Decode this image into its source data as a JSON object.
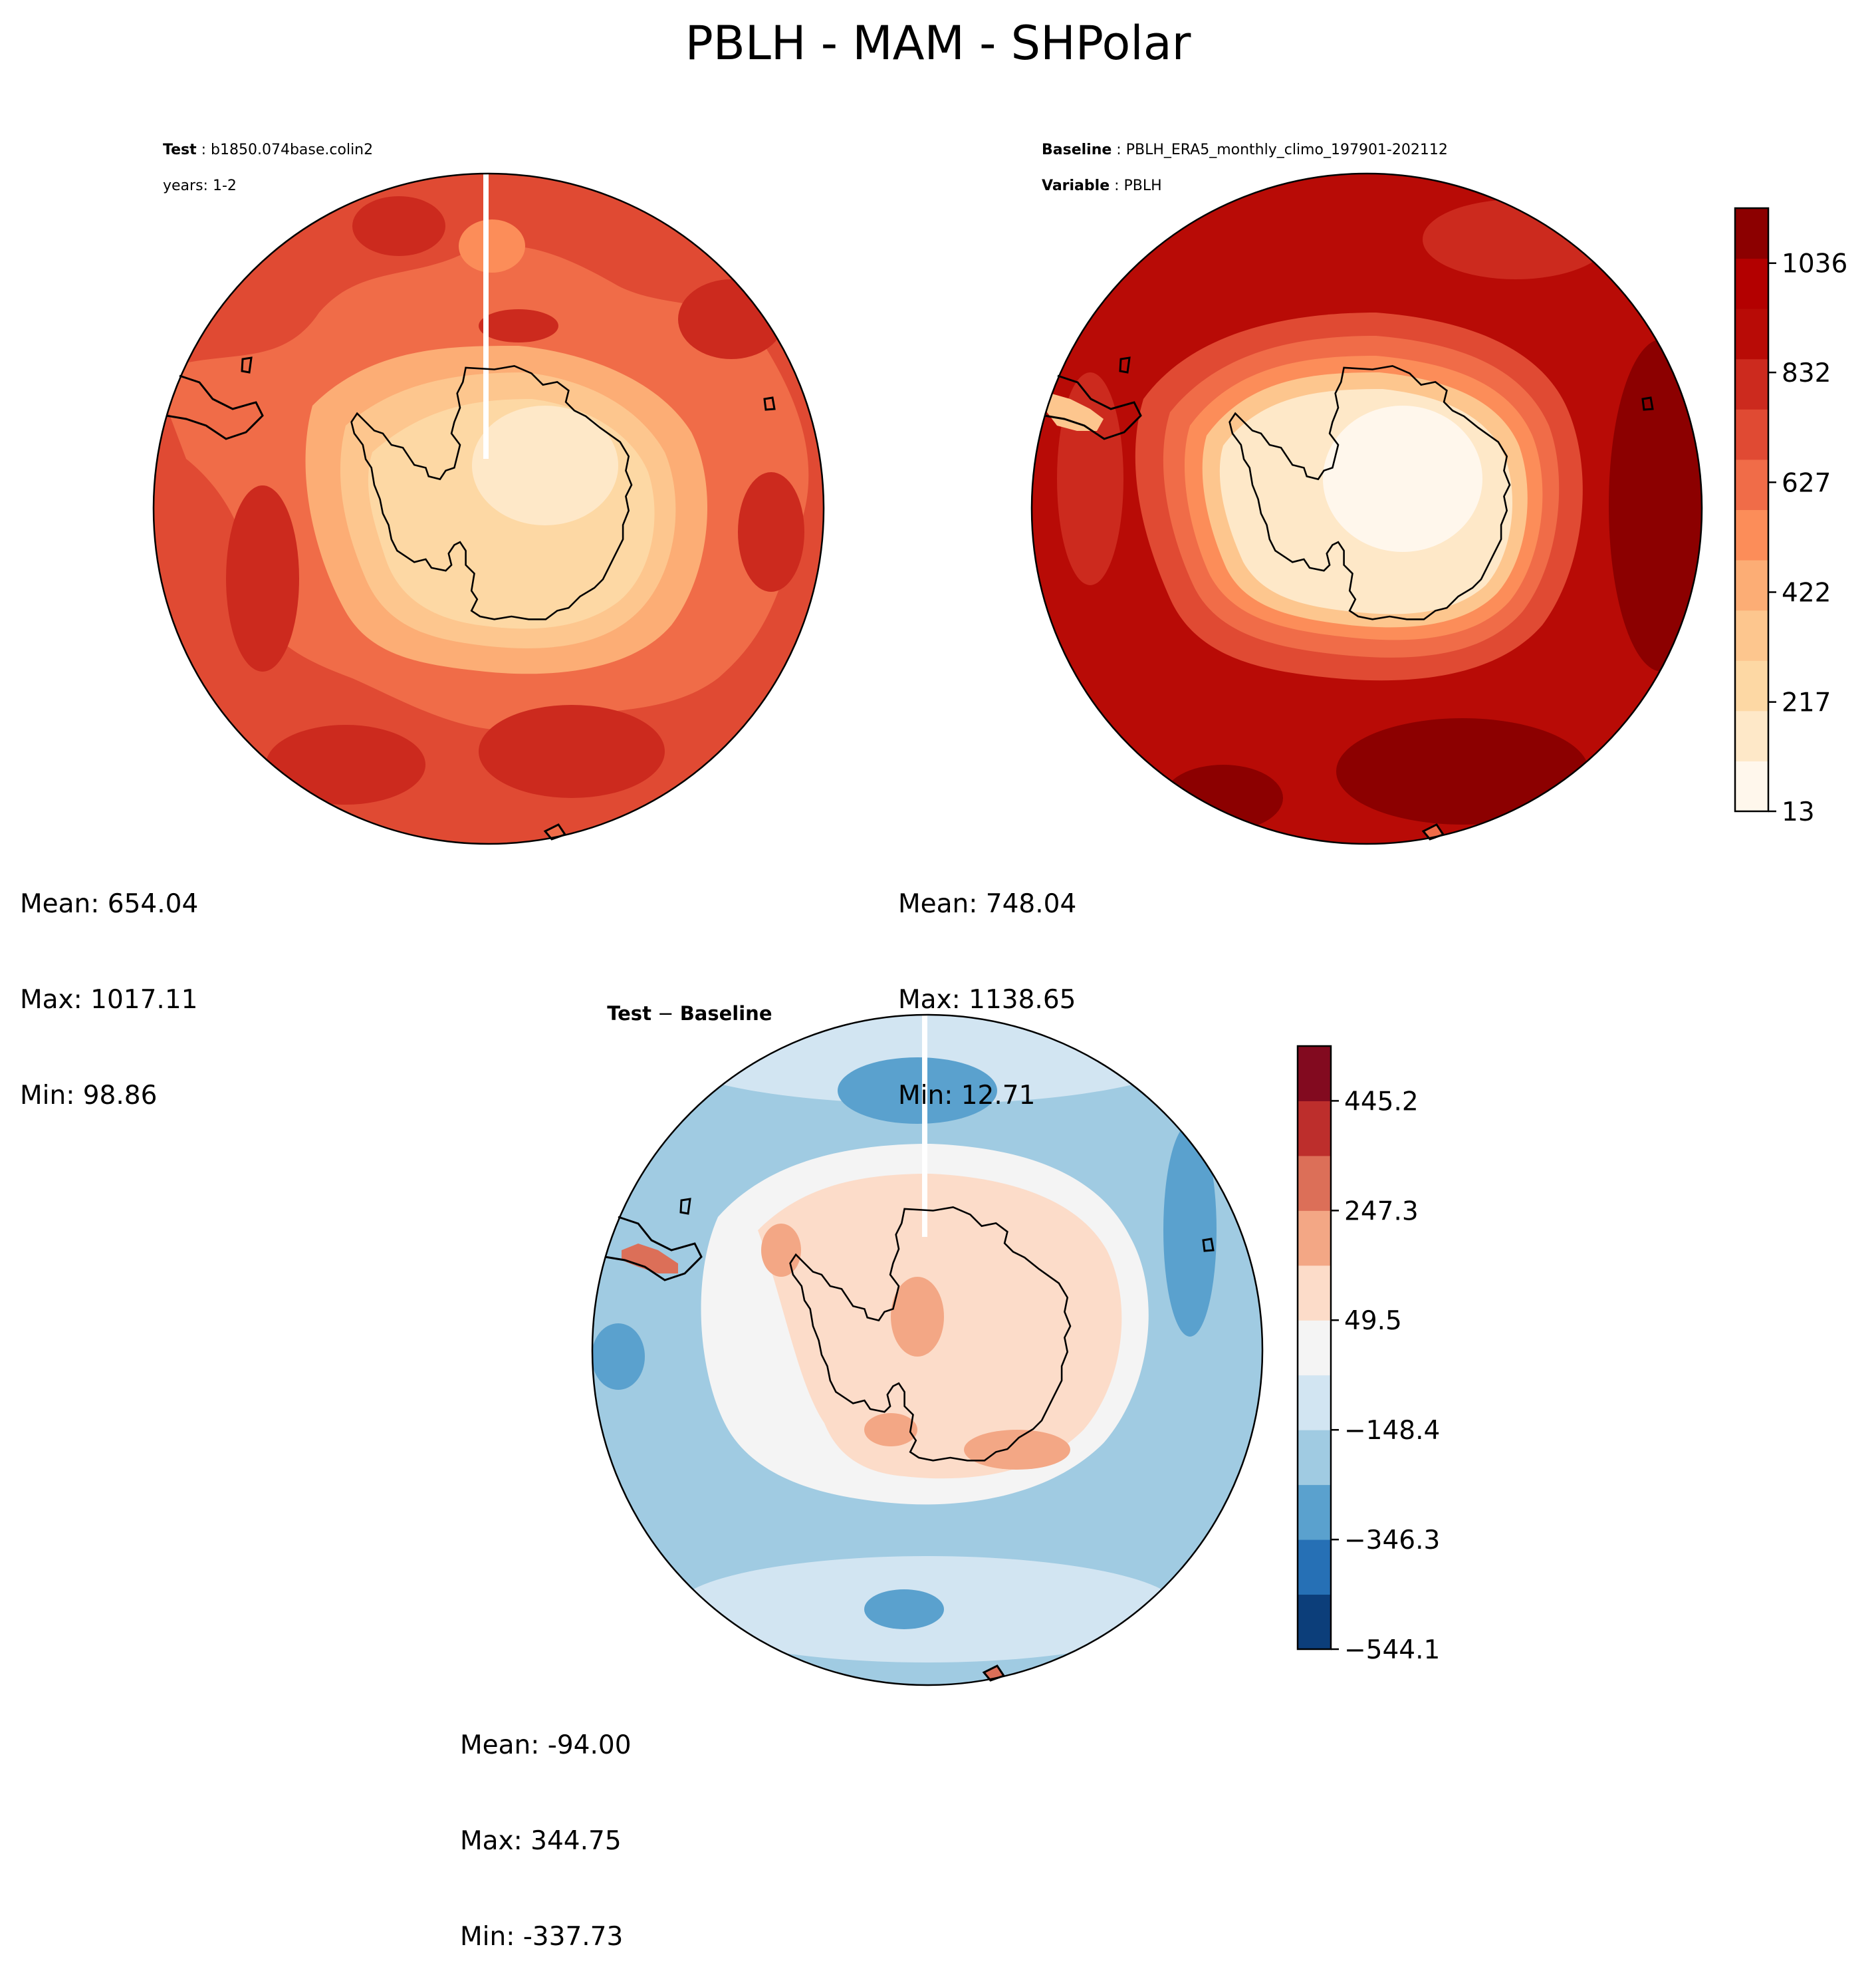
{
  "figure_title": "PBLH - MAM - SHPolar",
  "panels": {
    "test": {
      "label_key": "Test",
      "label_val": "b1850.074base.colin2",
      "line2": "years: 1-2",
      "mean": "Mean: 654.04",
      "max": "Max: 1017.11",
      "min": "Min: 98.86"
    },
    "baseline": {
      "label_key": "Baseline",
      "label_val": "PBLH_ERA5_monthly_climo_197901-202112",
      "line2_key": "Variable",
      "line2_val": "PBLH",
      "mean": "Mean: 748.04",
      "max": "Max: 1138.65",
      "min": "Min: 12.71"
    },
    "diff": {
      "title_a": "Test",
      "title_b": "Baseline",
      "mean": "Mean: -94.00",
      "max": "Max: 344.75",
      "min": "Min: -337.73"
    }
  },
  "chart_data": [
    {
      "type": "heatmap",
      "panel": "Test",
      "projection": "south-polar-stereographic",
      "stats": {
        "mean": 654.04,
        "max": 1017.11,
        "min": 98.86
      },
      "colormap": "OrRd (shared with Baseline)"
    },
    {
      "type": "heatmap",
      "panel": "Baseline",
      "projection": "south-polar-stereographic",
      "stats": {
        "mean": 748.04,
        "max": 1138.65,
        "min": 12.71
      },
      "colorbar": {
        "ticks": [
          13,
          217,
          422,
          627,
          832,
          1036
        ],
        "tick_labels": [
          "13",
          "217",
          "422",
          "627",
          "832",
          "1036"
        ],
        "range": [
          13,
          1138.65
        ],
        "levels": 12,
        "colors": [
          "#fff7ec",
          "#fee8c8",
          "#fdd8a4",
          "#fdc68e",
          "#fcad75",
          "#fc8d59",
          "#f06c48",
          "#e04a33",
          "#cc2a1e",
          "#b80b06",
          "#b30000",
          "#8c0000"
        ]
      }
    },
    {
      "type": "heatmap",
      "panel": "Test - Baseline",
      "projection": "south-polar-stereographic",
      "stats": {
        "mean": -94.0,
        "max": 344.75,
        "min": -337.73
      },
      "colorbar": {
        "ticks": [
          -544.1,
          -346.3,
          -148.4,
          49.5,
          247.3,
          445.2
        ],
        "tick_labels": [
          "−544.1",
          "−346.3",
          "−148.4",
          "49.5",
          "247.3",
          "445.2"
        ],
        "range": [
          -544.1,
          544.1
        ],
        "levels": 11,
        "colors": [
          "#0c3e7a",
          "#2670b5",
          "#5aa1ce",
          "#a0cbe2",
          "#d2e5f2",
          "#f4f4f4",
          "#fcdcc9",
          "#f3a785",
          "#dc6f58",
          "#bd2e2c",
          "#820a1f"
        ]
      }
    }
  ]
}
